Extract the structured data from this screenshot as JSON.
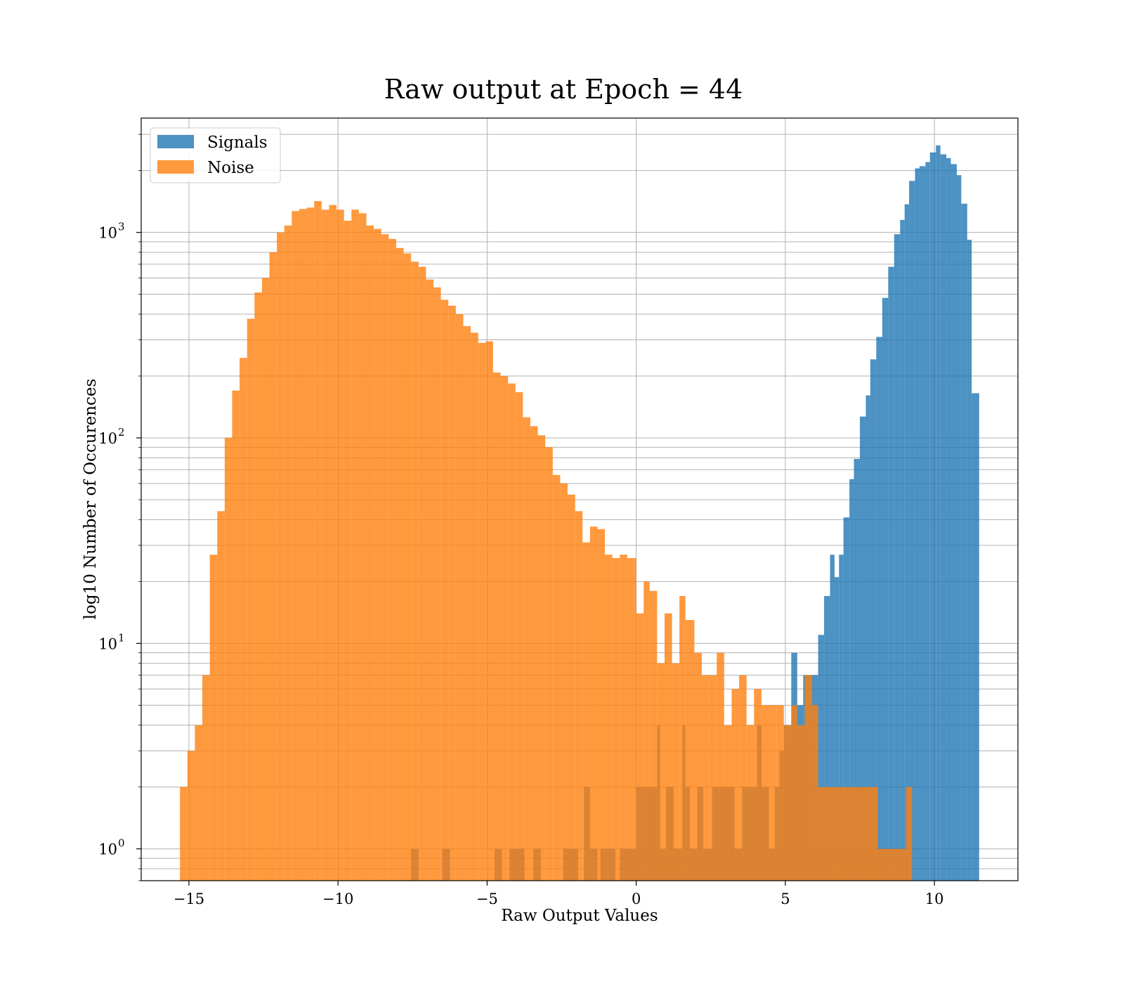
{
  "chart_data": {
    "type": "bar",
    "title": "Raw output at Epoch = 44",
    "xlabel": "Raw Output Values",
    "ylabel": "log10 Number of Occurences",
    "xlim": [
      -16.6,
      12.8
    ],
    "ylim": [
      0.7,
      3600
    ],
    "yscale": "log",
    "grid": true,
    "legend_position": "top-left",
    "x_ticks": [
      {
        "value": -15,
        "label": "−15"
      },
      {
        "value": -10,
        "label": "−10"
      },
      {
        "value": -5,
        "label": "−5"
      },
      {
        "value": 0,
        "label": "0"
      },
      {
        "value": 5,
        "label": "5"
      },
      {
        "value": 10,
        "label": "10"
      }
    ],
    "y_ticks": [
      {
        "value": 1,
        "base": "10",
        "exp": "0"
      },
      {
        "value": 10,
        "base": "10",
        "exp": "1"
      },
      {
        "value": 100,
        "base": "10",
        "exp": "2"
      },
      {
        "value": 1000,
        "base": "10",
        "exp": "3"
      }
    ],
    "series": [
      {
        "name": "Signals",
        "color": "#1f77b4",
        "opacity": 0.8,
        "bins": [
          [
            -7.55,
            -7.3,
            1
          ],
          [
            -6.5,
            -6.25,
            1
          ],
          [
            -4.75,
            -4.5,
            1
          ],
          [
            -4.25,
            -4.0,
            1
          ],
          [
            -4.0,
            -3.75,
            1
          ],
          [
            -3.45,
            -3.2,
            1
          ],
          [
            -2.45,
            -2.2,
            1
          ],
          [
            -2.2,
            -1.95,
            1
          ],
          [
            -1.75,
            -1.55,
            2
          ],
          [
            -1.55,
            -1.3,
            1
          ],
          [
            -1.2,
            -0.95,
            1
          ],
          [
            -0.95,
            -0.7,
            1
          ],
          [
            -0.55,
            -0.3,
            1
          ],
          [
            -0.3,
            -0.05,
            1
          ],
          [
            -0.05,
            0.0,
            1
          ],
          [
            0.0,
            0.25,
            2
          ],
          [
            0.25,
            0.5,
            2
          ],
          [
            0.5,
            0.7,
            2
          ],
          [
            0.7,
            0.8,
            4
          ],
          [
            0.8,
            1.0,
            1
          ],
          [
            1.0,
            1.25,
            2
          ],
          [
            1.25,
            1.55,
            1
          ],
          [
            1.55,
            1.65,
            4
          ],
          [
            1.65,
            1.8,
            2
          ],
          [
            1.8,
            2.05,
            1
          ],
          [
            2.05,
            2.25,
            2
          ],
          [
            2.25,
            2.55,
            1
          ],
          [
            2.55,
            2.8,
            2
          ],
          [
            2.8,
            3.05,
            2
          ],
          [
            3.05,
            3.3,
            2
          ],
          [
            3.3,
            3.55,
            1
          ],
          [
            3.55,
            3.8,
            2
          ],
          [
            3.8,
            4.05,
            2
          ],
          [
            4.05,
            4.2,
            4
          ],
          [
            4.2,
            4.45,
            2
          ],
          [
            4.45,
            4.65,
            1
          ],
          [
            4.65,
            4.8,
            2
          ],
          [
            4.8,
            4.95,
            3
          ],
          [
            4.95,
            5.2,
            4
          ],
          [
            5.2,
            5.4,
            9
          ],
          [
            5.4,
            5.6,
            5
          ],
          [
            5.6,
            5.85,
            7
          ],
          [
            5.85,
            6.1,
            7
          ],
          [
            6.1,
            6.3,
            11
          ],
          [
            6.3,
            6.5,
            17
          ],
          [
            6.5,
            6.65,
            27
          ],
          [
            6.65,
            6.8,
            21
          ],
          [
            6.8,
            6.95,
            27
          ],
          [
            6.95,
            7.15,
            41
          ],
          [
            7.15,
            7.3,
            63
          ],
          [
            7.3,
            7.5,
            79
          ],
          [
            7.5,
            7.7,
            127
          ],
          [
            7.7,
            7.85,
            161
          ],
          [
            7.85,
            8.05,
            241
          ],
          [
            8.05,
            8.25,
            310
          ],
          [
            8.25,
            8.45,
            480
          ],
          [
            8.45,
            8.65,
            680
          ],
          [
            8.65,
            8.85,
            980
          ],
          [
            8.85,
            9.0,
            1150
          ],
          [
            9.0,
            9.15,
            1370
          ],
          [
            9.15,
            9.35,
            1780
          ],
          [
            9.35,
            9.5,
            2050
          ],
          [
            9.5,
            9.7,
            2100
          ],
          [
            9.7,
            9.85,
            2200
          ],
          [
            9.85,
            10.05,
            2450
          ],
          [
            10.05,
            10.2,
            2650
          ],
          [
            10.2,
            10.4,
            2400
          ],
          [
            10.4,
            10.55,
            2300
          ],
          [
            10.55,
            10.75,
            2150
          ],
          [
            10.75,
            10.9,
            1900
          ],
          [
            10.9,
            11.1,
            1380
          ],
          [
            11.1,
            11.25,
            920
          ],
          [
            11.25,
            11.5,
            165
          ]
        ]
      },
      {
        "name": "Noise",
        "color": "#ff7f0e",
        "opacity": 0.8,
        "bins": [
          [
            -15.3,
            -15.05,
            2
          ],
          [
            -15.05,
            -14.8,
            3
          ],
          [
            -14.8,
            -14.55,
            4
          ],
          [
            -14.55,
            -14.3,
            7
          ],
          [
            -14.3,
            -14.05,
            27
          ],
          [
            -14.05,
            -13.8,
            44
          ],
          [
            -13.8,
            -13.55,
            100
          ],
          [
            -13.55,
            -13.3,
            170
          ],
          [
            -13.3,
            -13.05,
            245
          ],
          [
            -13.05,
            -12.8,
            380
          ],
          [
            -12.8,
            -12.55,
            510
          ],
          [
            -12.55,
            -12.3,
            600
          ],
          [
            -12.3,
            -12.05,
            800
          ],
          [
            -12.05,
            -11.8,
            1000
          ],
          [
            -11.8,
            -11.55,
            1080
          ],
          [
            -11.55,
            -11.3,
            1270
          ],
          [
            -11.3,
            -11.05,
            1300
          ],
          [
            -11.05,
            -10.8,
            1320
          ],
          [
            -10.8,
            -10.55,
            1420
          ],
          [
            -10.55,
            -10.3,
            1290
          ],
          [
            -10.3,
            -10.05,
            1360
          ],
          [
            -10.05,
            -9.8,
            1290
          ],
          [
            -9.8,
            -9.55,
            1140
          ],
          [
            -9.55,
            -9.3,
            1290
          ],
          [
            -9.3,
            -9.05,
            1240
          ],
          [
            -9.05,
            -8.8,
            1080
          ],
          [
            -8.8,
            -8.55,
            1040
          ],
          [
            -8.55,
            -8.3,
            980
          ],
          [
            -8.3,
            -8.05,
            930
          ],
          [
            -8.05,
            -7.8,
            840
          ],
          [
            -7.8,
            -7.55,
            790
          ],
          [
            -7.55,
            -7.3,
            720
          ],
          [
            -7.3,
            -7.05,
            680
          ],
          [
            -7.05,
            -6.8,
            590
          ],
          [
            -6.8,
            -6.55,
            540
          ],
          [
            -6.55,
            -6.3,
            470
          ],
          [
            -6.3,
            -6.05,
            440
          ],
          [
            -6.05,
            -5.8,
            400
          ],
          [
            -5.8,
            -5.55,
            350
          ],
          [
            -5.55,
            -5.3,
            325
          ],
          [
            -5.3,
            -5.05,
            290
          ],
          [
            -5.05,
            -4.8,
            295
          ],
          [
            -4.8,
            -4.55,
            208
          ],
          [
            -4.55,
            -4.3,
            200
          ],
          [
            -4.3,
            -4.05,
            184
          ],
          [
            -4.05,
            -3.8,
            167
          ],
          [
            -3.8,
            -3.55,
            126
          ],
          [
            -3.55,
            -3.3,
            114
          ],
          [
            -3.3,
            -3.05,
            103
          ],
          [
            -3.05,
            -2.8,
            90
          ],
          [
            -2.8,
            -2.55,
            66
          ],
          [
            -2.55,
            -2.3,
            60
          ],
          [
            -2.3,
            -2.05,
            53
          ],
          [
            -2.05,
            -1.8,
            44
          ],
          [
            -1.8,
            -1.55,
            31
          ],
          [
            -1.55,
            -1.3,
            37
          ],
          [
            -1.3,
            -1.05,
            36
          ],
          [
            -1.05,
            -0.8,
            27
          ],
          [
            -0.8,
            -0.55,
            26
          ],
          [
            -0.55,
            -0.3,
            27
          ],
          [
            -0.3,
            -0.05,
            26
          ],
          [
            -0.05,
            0.0,
            26
          ],
          [
            0.0,
            0.25,
            14
          ],
          [
            0.25,
            0.45,
            20
          ],
          [
            0.45,
            0.7,
            18
          ],
          [
            0.7,
            0.95,
            8
          ],
          [
            0.95,
            1.2,
            14
          ],
          [
            1.2,
            1.45,
            8
          ],
          [
            1.45,
            1.65,
            17
          ],
          [
            1.65,
            1.95,
            13
          ],
          [
            1.95,
            2.2,
            9
          ],
          [
            2.2,
            2.45,
            7
          ],
          [
            2.45,
            2.7,
            7
          ],
          [
            2.7,
            2.95,
            9
          ],
          [
            2.95,
            3.2,
            4
          ],
          [
            3.2,
            3.45,
            6
          ],
          [
            3.45,
            3.7,
            7
          ],
          [
            3.7,
            3.95,
            4
          ],
          [
            3.95,
            4.2,
            6
          ],
          [
            4.2,
            4.45,
            5
          ],
          [
            4.45,
            4.7,
            5
          ],
          [
            4.7,
            4.95,
            5
          ],
          [
            4.95,
            5.2,
            4
          ],
          [
            5.2,
            5.4,
            5
          ],
          [
            5.4,
            5.65,
            4
          ],
          [
            5.65,
            5.9,
            7
          ],
          [
            5.9,
            6.1,
            5
          ],
          [
            6.1,
            8.1,
            2
          ],
          [
            8.1,
            8.25,
            1
          ],
          [
            8.25,
            8.55,
            1
          ],
          [
            8.55,
            8.85,
            1
          ],
          [
            8.85,
            9.05,
            1
          ],
          [
            9.05,
            9.25,
            2
          ]
        ]
      }
    ]
  }
}
